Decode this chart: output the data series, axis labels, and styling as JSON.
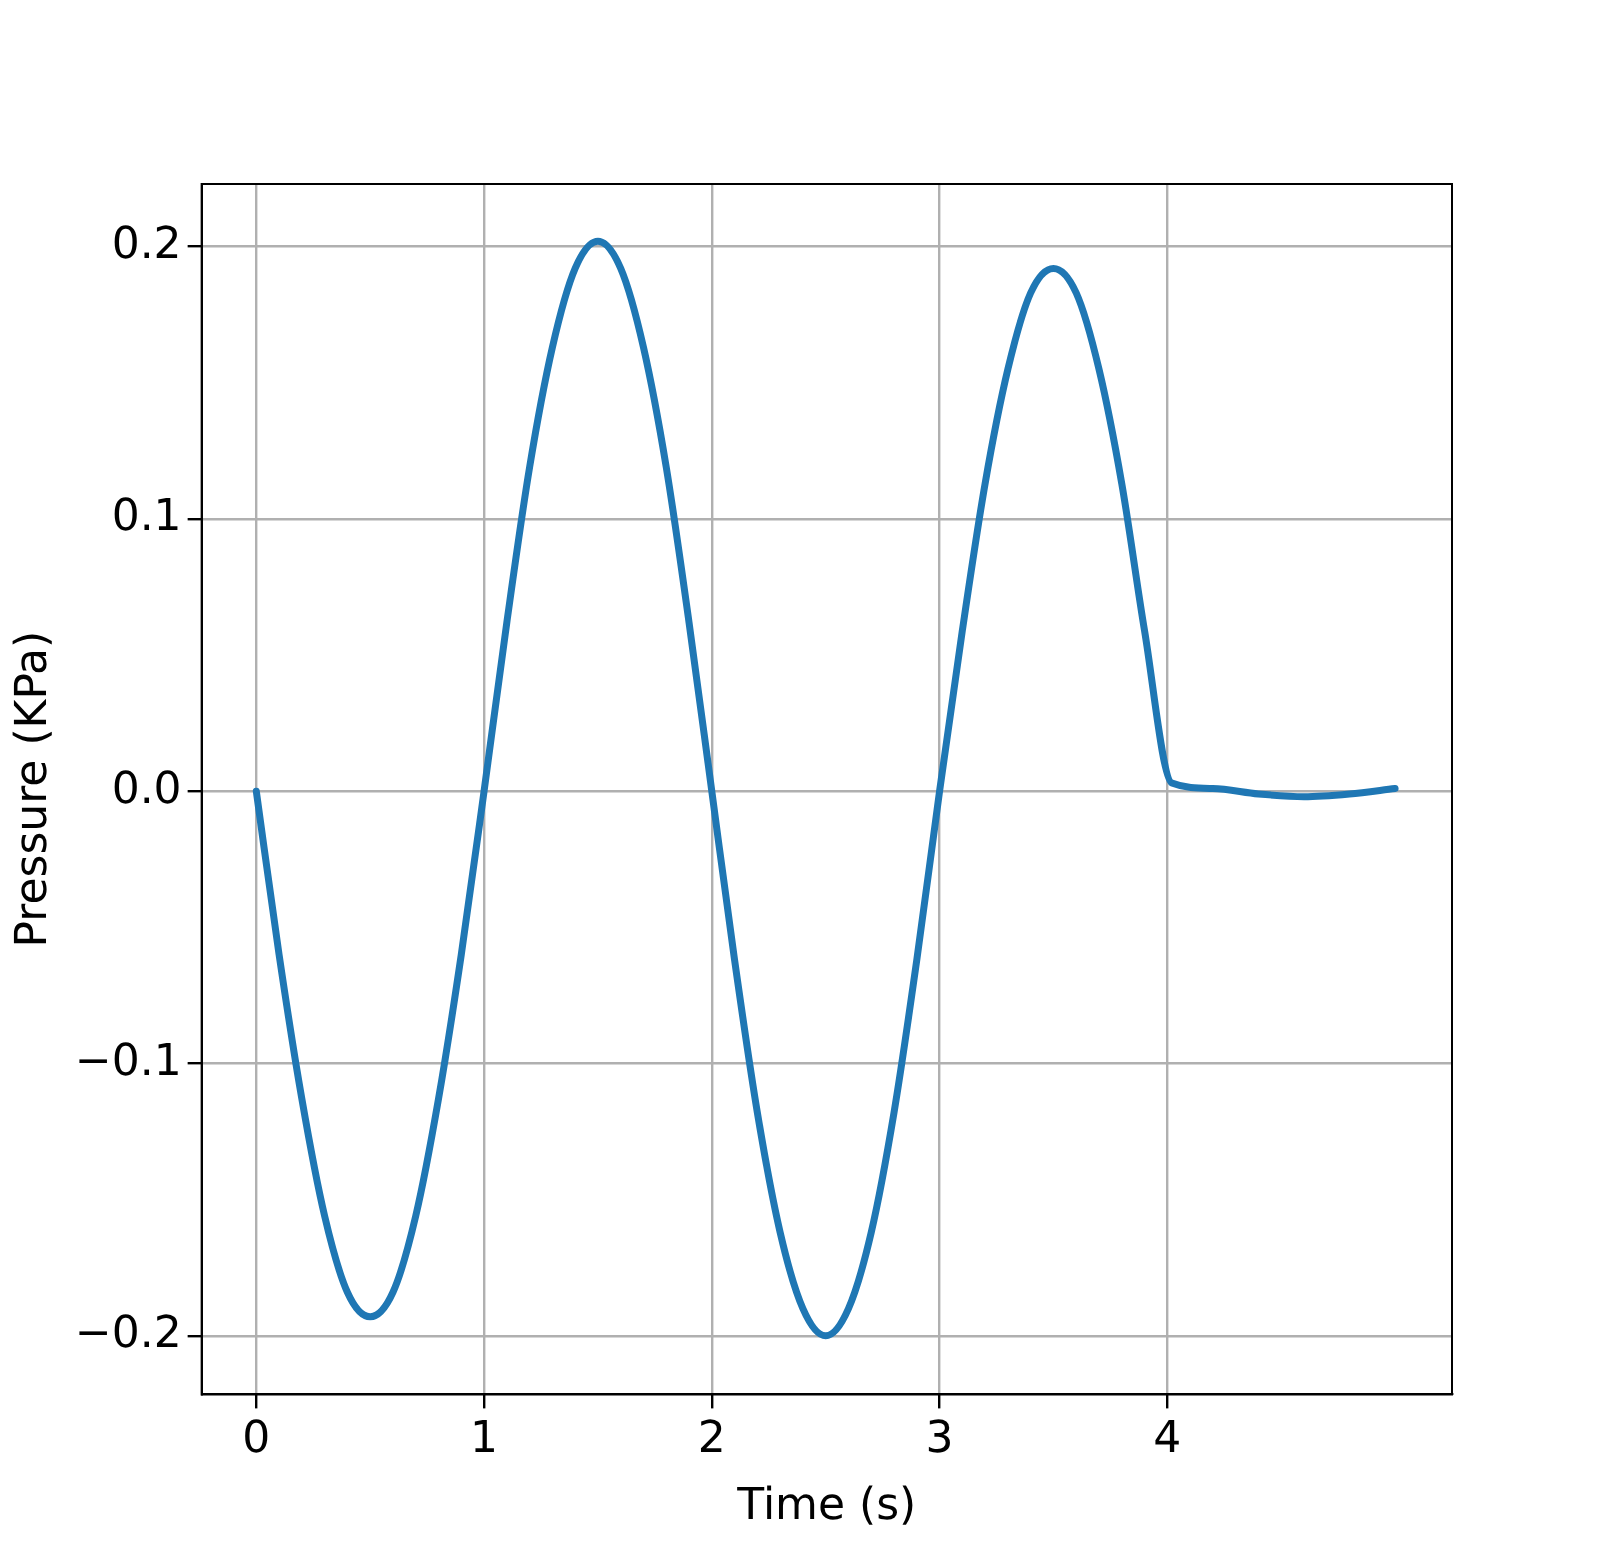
{
  "chart_data": {
    "type": "line",
    "xlabel": "Time (s)",
    "ylabel": "Pressure (KPa)",
    "x": [
      0,
      0.1,
      0.2,
      0.3,
      0.4,
      0.5,
      0.6,
      0.7,
      0.8,
      0.9,
      1,
      1.1,
      1.2,
      1.3,
      1.4,
      1.5,
      1.6,
      1.7,
      1.8,
      1.9,
      2,
      2.1,
      2.2,
      2.3,
      2.4,
      2.5,
      2.6,
      2.7,
      2.8,
      2.9,
      3,
      3.1,
      3.2,
      3.3,
      3.4,
      3.5,
      3.6,
      3.7,
      3.8,
      3.9,
      4.02,
      4.2,
      4.4,
      4.6,
      4.8,
      5.0
    ],
    "series": [
      {
        "color": "#1f77b4",
        "values": [
          0,
          -0.06,
          -0.113,
          -0.156,
          -0.184,
          -0.193,
          -0.184,
          -0.156,
          -0.113,
          -0.06,
          0,
          0.062,
          0.119,
          0.163,
          0.192,
          0.202,
          0.192,
          0.163,
          0.119,
          0.062,
          0,
          -0.062,
          -0.118,
          -0.162,
          -0.19,
          -0.2,
          -0.19,
          -0.162,
          -0.118,
          -0.062,
          0,
          0.059,
          0.113,
          0.155,
          0.183,
          0.192,
          0.183,
          0.155,
          0.113,
          0.059,
          0.003,
          0.001,
          -0.001,
          -0.002,
          -0.001,
          0.001
        ]
      }
    ],
    "xlim": [
      -0.24,
      5.25
    ],
    "xticks": [
      0,
      1,
      2,
      3,
      4
    ],
    "ylim": [
      -0.2215,
      0.223
    ],
    "yticks": [
      {
        "value": -0.2,
        "label": "−0.2"
      },
      {
        "value": -0.1,
        "label": "−0.1"
      },
      {
        "value": 0,
        "label": "0.0"
      },
      {
        "value": 0.1,
        "label": "0.1"
      },
      {
        "value": 0.2,
        "label": "0.2"
      }
    ],
    "grid": true,
    "legend": false,
    "marker": "none",
    "line_style": "solid"
  }
}
